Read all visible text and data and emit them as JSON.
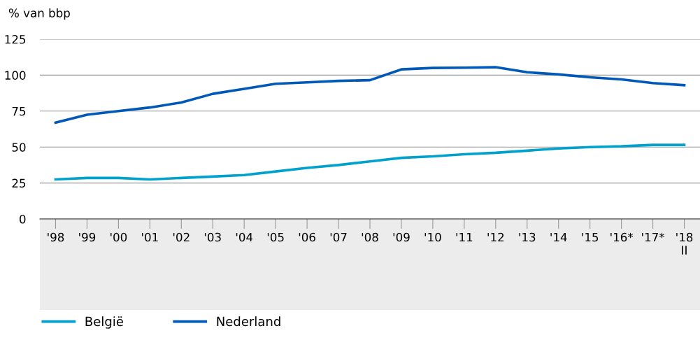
{
  "chart_data": {
    "type": "line",
    "ylabel": "% van bbp",
    "categories": [
      "'98",
      "'99",
      "'00",
      "'01",
      "'02",
      "'03",
      "'04",
      "'05",
      "'06",
      "'07",
      "'08",
      "'09",
      "'10",
      "'11",
      "'12",
      "'13",
      "'14",
      "'15",
      "'16*",
      "'17*",
      "'18\nII"
    ],
    "series": [
      {
        "name": "België",
        "color": "#00a1cd",
        "values": [
          27.5,
          28.5,
          28.5,
          27.5,
          28.5,
          29.5,
          30.5,
          33,
          35.5,
          37.5,
          40,
          42.5,
          43.5,
          45,
          46,
          47.5,
          49,
          50,
          50.5,
          51.5,
          51.5
        ]
      },
      {
        "name": "Nederland",
        "color": "#0058b8",
        "values": [
          67,
          72.5,
          75,
          77.5,
          81,
          87,
          90.5,
          94,
          95,
          96,
          96.5,
          104,
          105,
          105.2,
          105.5,
          102,
          100.5,
          98.5,
          97,
          94.5,
          93
        ]
      }
    ],
    "ylim": [
      0,
      125
    ],
    "yticks": [
      0,
      25,
      50,
      75,
      100,
      125
    ],
    "grid": "y",
    "legend": "bottom left",
    "marker": "none",
    "line_style": "solid"
  }
}
